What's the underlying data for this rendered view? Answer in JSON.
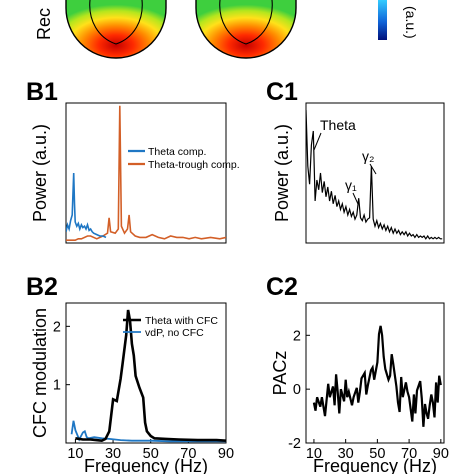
{
  "top": {
    "row_label": "Rec",
    "colorbar_unit": "(a.u.)"
  },
  "chart_data": [
    {
      "id": "B1",
      "type": "line",
      "panel_label": "B1",
      "ylabel": "Power (a.u.)",
      "xlabel": "",
      "legend_position": "upper-right",
      "series": [
        {
          "name": "Theta comp.",
          "color": "#1f77c4",
          "points": [
            [
              0,
              0.08
            ],
            [
              1,
              0.13
            ],
            [
              2,
              0.1
            ],
            [
              3,
              0.16
            ],
            [
              4,
              0.2
            ],
            [
              5,
              0.5
            ],
            [
              5.5,
              0.28
            ],
            [
              6,
              0.15
            ],
            [
              7,
              0.12
            ],
            [
              8,
              0.14
            ],
            [
              9,
              0.1
            ],
            [
              10,
              0.13
            ],
            [
              11,
              0.11
            ],
            [
              12,
              0.12
            ],
            [
              13,
              0.1
            ],
            [
              14,
              0.13
            ],
            [
              15,
              0.09
            ],
            [
              16,
              0.1
            ],
            [
              17,
              0.08
            ],
            [
              18,
              0.07
            ],
            [
              20,
              0.06
            ],
            [
              22,
              0.05
            ],
            [
              24,
              0.05
            ],
            [
              26,
              0.04
            ]
          ]
        },
        {
          "name": "Theta-trough comp.",
          "color": "#d35f27",
          "points": [
            [
              0,
              0.02
            ],
            [
              6,
              0.02
            ],
            [
              8,
              0.03
            ],
            [
              10,
              0.03
            ],
            [
              14,
              0.05
            ],
            [
              16,
              0.05
            ],
            [
              20,
              0.03
            ],
            [
              24,
              0.05
            ],
            [
              27,
              0.07
            ],
            [
              28,
              0.18
            ],
            [
              29,
              0.08
            ],
            [
              32,
              0.07
            ],
            [
              34,
              0.1
            ],
            [
              35,
              0.98
            ],
            [
              36,
              0.12
            ],
            [
              38,
              0.07
            ],
            [
              40,
              0.1
            ],
            [
              41,
              0.2
            ],
            [
              42,
              0.08
            ],
            [
              45,
              0.05
            ],
            [
              48,
              0.04
            ],
            [
              52,
              0.04
            ],
            [
              56,
              0.06
            ],
            [
              60,
              0.04
            ],
            [
              64,
              0.03
            ],
            [
              68,
              0.05
            ],
            [
              72,
              0.04
            ],
            [
              76,
              0.04
            ],
            [
              80,
              0.03
            ],
            [
              84,
              0.04
            ],
            [
              88,
              0.03
            ],
            [
              94,
              0.04
            ],
            [
              100,
              0.03
            ],
            [
              104,
              0.04
            ]
          ]
        }
      ]
    },
    {
      "id": "C1",
      "type": "line",
      "panel_label": "C1",
      "ylabel": "Power (a.u.)",
      "xlabel": "",
      "annotations": [
        "Theta",
        "γ₂",
        "γ₁"
      ],
      "series": [
        {
          "name": "",
          "color": "#000000",
          "points": [
            [
              0,
              0.95
            ],
            [
              1,
              0.55
            ],
            [
              2,
              0.42
            ],
            [
              3,
              0.7
            ],
            [
              4,
              0.8
            ],
            [
              5,
              0.3
            ],
            [
              6,
              0.45
            ],
            [
              7,
              0.38
            ],
            [
              8,
              0.5
            ],
            [
              9,
              0.36
            ],
            [
              10,
              0.44
            ],
            [
              11,
              0.33
            ],
            [
              12,
              0.4
            ],
            [
              13,
              0.3
            ],
            [
              14,
              0.37
            ],
            [
              15,
              0.28
            ],
            [
              16,
              0.34
            ],
            [
              17,
              0.26
            ],
            [
              18,
              0.3
            ],
            [
              19,
              0.24
            ],
            [
              20,
              0.28
            ],
            [
              21,
              0.22
            ],
            [
              22,
              0.26
            ],
            [
              23,
              0.2
            ],
            [
              24,
              0.24
            ],
            [
              25,
              0.19
            ],
            [
              26,
              0.22
            ],
            [
              27,
              0.17
            ],
            [
              28,
              0.2
            ],
            [
              29,
              0.32
            ],
            [
              30,
              0.18
            ],
            [
              31,
              0.16
            ],
            [
              32,
              0.2
            ],
            [
              33,
              0.15
            ],
            [
              34,
              0.17
            ],
            [
              35,
              0.18
            ],
            [
              36,
              0.55
            ],
            [
              37,
              0.17
            ],
            [
              38,
              0.12
            ],
            [
              39,
              0.16
            ],
            [
              40,
              0.11
            ],
            [
              41,
              0.14
            ],
            [
              42,
              0.1
            ],
            [
              43,
              0.13
            ],
            [
              44,
              0.09
            ],
            [
              45,
              0.12
            ],
            [
              46,
              0.08
            ],
            [
              47,
              0.11
            ],
            [
              48,
              0.07
            ],
            [
              49,
              0.1
            ],
            [
              50,
              0.07
            ],
            [
              51,
              0.09
            ],
            [
              52,
              0.06
            ],
            [
              53,
              0.08
            ],
            [
              54,
              0.06
            ],
            [
              55,
              0.08
            ],
            [
              56,
              0.05
            ],
            [
              57,
              0.07
            ],
            [
              58,
              0.05
            ],
            [
              59,
              0.06
            ],
            [
              60,
              0.04
            ],
            [
              61,
              0.06
            ],
            [
              62,
              0.04
            ],
            [
              63,
              0.05
            ],
            [
              64,
              0.04
            ],
            [
              65,
              0.05
            ],
            [
              66,
              0.03
            ],
            [
              67,
              0.05
            ],
            [
              68,
              0.03
            ],
            [
              69,
              0.04
            ],
            [
              70,
              0.03
            ],
            [
              71,
              0.04
            ],
            [
              72,
              0.03
            ],
            [
              73,
              0.04
            ],
            [
              74,
              0.03
            ],
            [
              75,
              0.03
            ]
          ]
        }
      ]
    },
    {
      "id": "B2",
      "type": "line",
      "panel_label": "B2",
      "xlabel": "Frequency (Hz)",
      "ylabel": "CFC modulation",
      "xlim": [
        5,
        90
      ],
      "ylim": [
        0,
        2.4
      ],
      "xticks": [
        "10",
        "30",
        "50",
        "70",
        "90"
      ],
      "yticks": [
        "1",
        "2"
      ],
      "legend_position": "upper-right",
      "series": [
        {
          "name": "Theta with CFC",
          "color": "#000000",
          "points": [
            [
              10,
              0.08
            ],
            [
              14,
              0.06
            ],
            [
              18,
              0.06
            ],
            [
              21,
              0.05
            ],
            [
              24,
              0.04
            ],
            [
              26,
              0.07
            ],
            [
              28,
              0.2
            ],
            [
              30,
              0.75
            ],
            [
              32,
              0.72
            ],
            [
              34,
              1.1
            ],
            [
              35,
              1.35
            ],
            [
              37,
              1.85
            ],
            [
              38,
              2.28
            ],
            [
              39,
              2.1
            ],
            [
              40,
              1.7
            ],
            [
              41,
              1.5
            ],
            [
              42,
              1.15
            ],
            [
              44,
              0.95
            ],
            [
              46,
              0.78
            ],
            [
              47,
              0.35
            ],
            [
              48,
              0.2
            ],
            [
              50,
              0.12
            ],
            [
              52,
              0.08
            ],
            [
              58,
              0.07
            ],
            [
              65,
              0.06
            ],
            [
              75,
              0.05
            ],
            [
              85,
              0.05
            ],
            [
              90,
              0.04
            ]
          ]
        },
        {
          "name": "vdP, no CFC",
          "color": "#1f77c4",
          "points": [
            [
              8,
              0.15
            ],
            [
              9,
              0.38
            ],
            [
              10,
              0.22
            ],
            [
              12,
              0.06
            ],
            [
              14,
              0.18
            ],
            [
              15,
              0.2
            ],
            [
              16,
              0.1
            ],
            [
              17,
              0.08
            ],
            [
              20,
              0.1
            ],
            [
              24,
              0.08
            ],
            [
              28,
              0.07
            ],
            [
              34,
              0.05
            ],
            [
              40,
              0.04
            ],
            [
              50,
              0.04
            ],
            [
              60,
              0.03
            ],
            [
              70,
              0.03
            ],
            [
              80,
              0.03
            ],
            [
              90,
              0.03
            ]
          ]
        }
      ]
    },
    {
      "id": "C2",
      "type": "line",
      "panel_label": "C2",
      "xlabel": "Frequency (Hz)",
      "ylabel": "PACz",
      "xlim": [
        5,
        92
      ],
      "ylim": [
        -2,
        3.2
      ],
      "xticks": [
        "10",
        "30",
        "50",
        "70",
        "90"
      ],
      "yticks": [
        "-2",
        "0",
        "2"
      ],
      "series": [
        {
          "name": "",
          "color": "#000000",
          "points": [
            [
              10,
              -0.5
            ],
            [
              11,
              -0.8
            ],
            [
              12,
              -0.3
            ],
            [
              14,
              -0.65
            ],
            [
              15,
              -0.3
            ],
            [
              17,
              -1.0
            ],
            [
              19,
              0.2
            ],
            [
              20,
              -0.3
            ],
            [
              22,
              0.1
            ],
            [
              23,
              -0.6
            ],
            [
              24,
              0.55
            ],
            [
              25,
              -0.1
            ],
            [
              26,
              -0.9
            ],
            [
              27,
              0.0
            ],
            [
              29,
              -0.45
            ],
            [
              30,
              0.35
            ],
            [
              31,
              -0.3
            ],
            [
              32,
              -0.1
            ],
            [
              34,
              -0.6
            ],
            [
              35,
              -0.3
            ],
            [
              37,
              0.05
            ],
            [
              38,
              -0.5
            ],
            [
              39,
              -0.1
            ],
            [
              40,
              0.4
            ],
            [
              42,
              0.6
            ],
            [
              43,
              -0.2
            ],
            [
              44,
              0.15
            ],
            [
              46,
              0.7
            ],
            [
              47,
              0.8
            ],
            [
              48,
              0.35
            ],
            [
              50,
              1.0
            ],
            [
              51,
              2.05
            ],
            [
              52,
              2.35
            ],
            [
              53,
              2.0
            ],
            [
              54,
              1.2
            ],
            [
              55,
              0.75
            ],
            [
              57,
              0.35
            ],
            [
              58,
              0.5
            ],
            [
              59,
              1.3
            ],
            [
              60,
              0.95
            ],
            [
              62,
              0.1
            ],
            [
              63,
              -0.5
            ],
            [
              64,
              -0.85
            ],
            [
              65,
              0.45
            ],
            [
              66,
              -0.3
            ],
            [
              68,
              0.25
            ],
            [
              69,
              -0.1
            ],
            [
              70,
              -0.3
            ],
            [
              71,
              -0.75
            ],
            [
              72,
              -1.2
            ],
            [
              73,
              -0.2
            ],
            [
              74,
              -0.9
            ],
            [
              75,
              -0.05
            ],
            [
              77,
              0.3
            ],
            [
              78,
              -0.35
            ],
            [
              79,
              -1.4
            ],
            [
              80,
              -0.55
            ],
            [
              81,
              -0.9
            ],
            [
              82,
              -1.1
            ],
            [
              83,
              -0.6
            ],
            [
              84,
              -0.2
            ],
            [
              85,
              -0.5
            ],
            [
              86,
              -1.05
            ],
            [
              87,
              0.25
            ],
            [
              88,
              -0.5
            ],
            [
              89,
              0.5
            ],
            [
              90,
              0.15
            ]
          ]
        }
      ]
    }
  ]
}
